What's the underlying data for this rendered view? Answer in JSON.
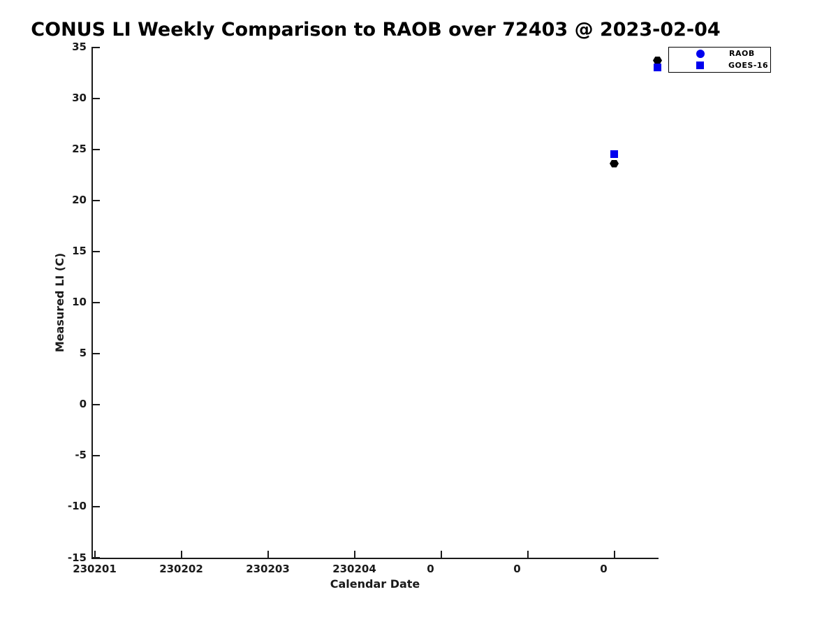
{
  "chart_data": {
    "type": "scatter",
    "title": "CONUS LI Weekly Comparison to RAOB over 72403 @ 2023-02-04",
    "xlabel": "Calendar Date",
    "ylabel": "Measured LI (C)",
    "x_tick_labels": [
      "230201",
      "230202",
      "230203",
      "230204",
      "0",
      "0",
      "0"
    ],
    "y_ticks": [
      35,
      30,
      25,
      20,
      15,
      10,
      5,
      0,
      -5,
      -10,
      -15
    ],
    "ylim": [
      -15,
      35
    ],
    "grid": false,
    "legend": {
      "position": "top-right-outside",
      "entries": [
        {
          "label": "RAOB",
          "marker": "circle",
          "color": "#0000ee"
        },
        {
          "label": "GOES-16",
          "marker": "square",
          "color": "#0000ee"
        }
      ]
    },
    "series": [
      {
        "name": "RAOB",
        "marker": "hexagon",
        "color": "#000000",
        "points": [
          {
            "x_index": 6.0,
            "y": 23.6
          },
          {
            "x_index": 6.5,
            "y": 33.7
          }
        ]
      },
      {
        "name": "GOES-16",
        "marker": "square",
        "color": "#0000ee",
        "points": [
          {
            "x_index": 6.0,
            "y": 24.5
          },
          {
            "x_index": 6.5,
            "y": 33.0
          }
        ]
      }
    ]
  },
  "colors": {
    "accent_blue": "#0000ee",
    "marker_black": "#000000",
    "axis": "#1a1a1a"
  }
}
